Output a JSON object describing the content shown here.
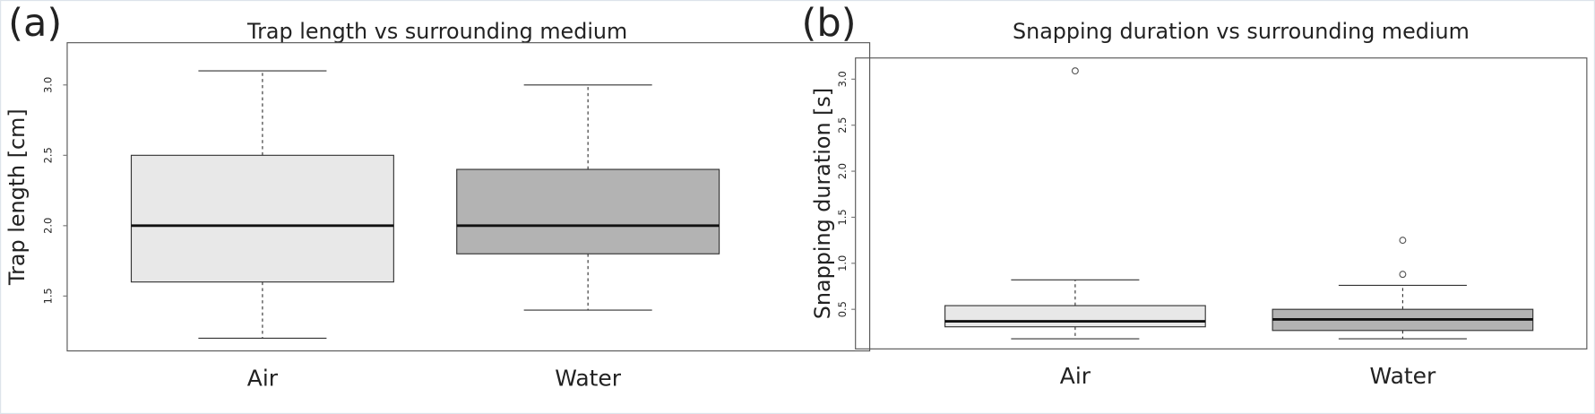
{
  "chart_data": [
    {
      "type": "box",
      "panel_label": "(a)",
      "title": "Trap length  vs  surrounding medium",
      "y_label": "Trap length [cm]",
      "categories": [
        "Air",
        "Water"
      ],
      "colors": [
        "#e8e8e8",
        "#b3b3b3"
      ],
      "boxes": [
        {
          "min": 1.2,
          "q1": 1.6,
          "median": 2.0,
          "q3": 2.5,
          "max": 3.1,
          "outliers": []
        },
        {
          "min": 1.4,
          "q1": 1.8,
          "median": 2.0,
          "q3": 2.4,
          "max": 3.0,
          "outliers": []
        }
      ],
      "ylim": [
        1.11,
        3.3
      ],
      "yticks": [
        1.5,
        {
          "value": 2,
          "label": "2.0"
        },
        2.5,
        {
          "value": 3,
          "label": "3.0"
        }
      ]
    },
    {
      "type": "box",
      "panel_label": "(b)",
      "title": "Snapping duration  vs  surrounding medium",
      "y_label": "Snapping duration [s]",
      "categories": [
        "Air",
        "Water"
      ],
      "colors": [
        "#e8e8e8",
        "#b3b3b3"
      ],
      "boxes": [
        {
          "min": 0.18,
          "q1": 0.31,
          "median": 0.37,
          "q3": 0.54,
          "max": 0.82,
          "outliers": [
            3.09
          ]
        },
        {
          "min": 0.18,
          "q1": 0.27,
          "median": 0.39,
          "q3": 0.5,
          "max": 0.76,
          "outliers": [
            0.88,
            1.25
          ]
        }
      ],
      "ylim": [
        0.07,
        3.23
      ],
      "yticks": [
        0.5,
        {
          "value": 1,
          "label": "1.0"
        },
        1.5,
        {
          "value": 2,
          "label": "2.0"
        },
        2.5,
        {
          "value": 3,
          "label": "3.0"
        }
      ]
    }
  ]
}
